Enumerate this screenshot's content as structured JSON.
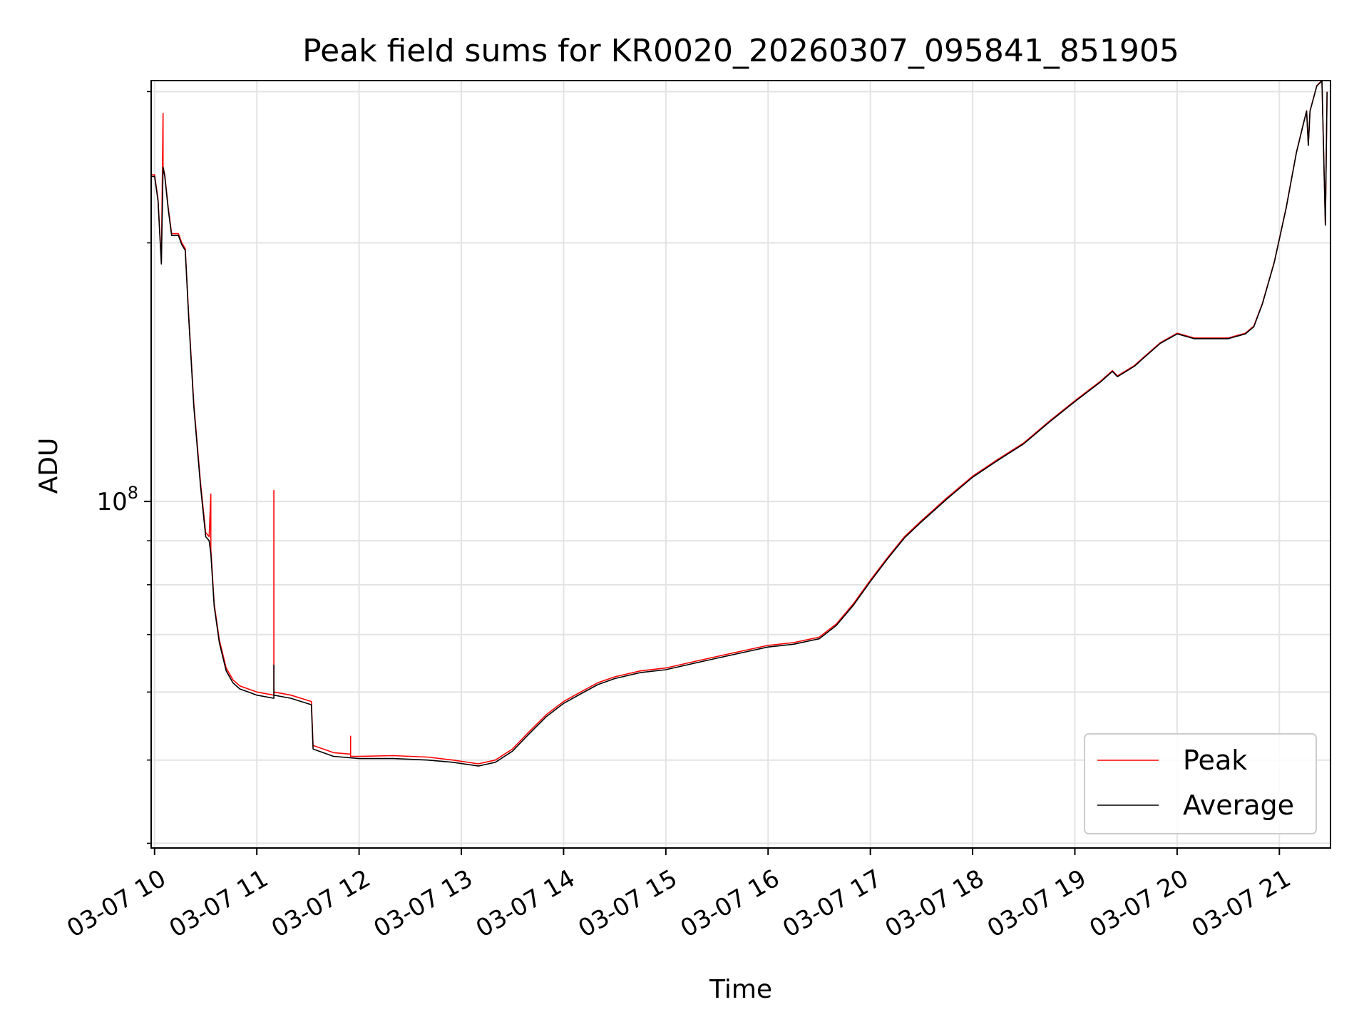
{
  "chart_data": {
    "type": "line",
    "title": "Peak field sums for KR0020_20260307_095841_851905",
    "xlabel": "Time",
    "ylabel": "ADU",
    "yscale": "log",
    "xlim": [
      "03-07 09:58",
      "03-07 21:30"
    ],
    "ylim": [
      39500000,
      309000000
    ],
    "grid": true,
    "legend_position": "lower-right",
    "x_tick_labels": [
      "03-07 10",
      "03-07 11",
      "03-07 12",
      "03-07 13",
      "03-07 14",
      "03-07 15",
      "03-07 16",
      "03-07 17",
      "03-07 18",
      "03-07 19",
      "03-07 20",
      "03-07 21"
    ],
    "x_ticks": [
      "03-07 10:00",
      "03-07 11:00",
      "03-07 12:00",
      "03-07 13:00",
      "03-07 14:00",
      "03-07 15:00",
      "03-07 16:00",
      "03-07 17:00",
      "03-07 18:00",
      "03-07 19:00",
      "03-07 20:00",
      "03-07 21:00"
    ],
    "y_tick_labels": [
      {
        "base": "10",
        "exp": "8",
        "value": 100000000
      }
    ],
    "y_minor_ticks": [
      40000000,
      50000000,
      60000000,
      70000000,
      80000000,
      90000000,
      200000000,
      300000000
    ],
    "series": [
      {
        "name": "Peak",
        "color": "#ff0000",
        "points": [
          [
            "03-07 09:58",
            240000000
          ],
          [
            "03-07 10:00",
            240000000
          ],
          [
            "03-07 10:02",
            225000000
          ],
          [
            "03-07 10:04",
            190000000
          ],
          [
            "03-07 10:05",
            283000000
          ],
          [
            "03-07 10:05",
            245000000
          ],
          [
            "03-07 10:06",
            240000000
          ],
          [
            "03-07 10:08",
            220000000
          ],
          [
            "03-07 10:10",
            205000000
          ],
          [
            "03-07 10:14",
            205000000
          ],
          [
            "03-07 10:16",
            200000000
          ],
          [
            "03-07 10:18",
            197000000
          ],
          [
            "03-07 10:20",
            165000000
          ],
          [
            "03-07 10:23",
            130000000
          ],
          [
            "03-07 10:27",
            105000000
          ],
          [
            "03-07 10:30",
            92000000
          ],
          [
            "03-07 10:32",
            91000000
          ],
          [
            "03-07 10:33",
            102000000
          ],
          [
            "03-07 10:33",
            88000000
          ],
          [
            "03-07 10:35",
            76000000
          ],
          [
            "03-07 10:38",
            69000000
          ],
          [
            "03-07 10:42",
            64000000
          ],
          [
            "03-07 10:46",
            62000000
          ],
          [
            "03-07 10:50",
            61000000
          ],
          [
            "03-07 10:55",
            60500000
          ],
          [
            "03-07 11:00",
            60000000
          ],
          [
            "03-07 11:10",
            59500000
          ],
          [
            "03-07 11:10",
            103000000
          ],
          [
            "03-07 11:10",
            60000000
          ],
          [
            "03-07 11:20",
            59500000
          ],
          [
            "03-07 11:32",
            58500000
          ],
          [
            "03-07 11:33",
            52000000
          ],
          [
            "03-07 11:45",
            51000000
          ],
          [
            "03-07 11:55",
            50800000
          ],
          [
            "03-07 11:55",
            53300000
          ],
          [
            "03-07 11:55",
            50500000
          ],
          [
            "03-07 12:00",
            50500000
          ],
          [
            "03-07 12:20",
            50600000
          ],
          [
            "03-07 12:40",
            50400000
          ],
          [
            "03-07 12:55",
            50000000
          ],
          [
            "03-07 13:10",
            49500000
          ],
          [
            "03-07 13:20",
            50000000
          ],
          [
            "03-07 13:30",
            51500000
          ],
          [
            "03-07 13:40",
            54000000
          ],
          [
            "03-07 13:50",
            56500000
          ],
          [
            "03-07 14:00",
            58500000
          ],
          [
            "03-07 14:10",
            60000000
          ],
          [
            "03-07 14:20",
            61500000
          ],
          [
            "03-07 14:30",
            62500000
          ],
          [
            "03-07 14:45",
            63500000
          ],
          [
            "03-07 15:00",
            64000000
          ],
          [
            "03-07 15:15",
            65000000
          ],
          [
            "03-07 15:30",
            66000000
          ],
          [
            "03-07 15:45",
            67000000
          ],
          [
            "03-07 16:00",
            68000000
          ],
          [
            "03-07 16:15",
            68500000
          ],
          [
            "03-07 16:30",
            69500000
          ],
          [
            "03-07 16:40",
            72000000
          ],
          [
            "03-07 16:50",
            76000000
          ],
          [
            "03-07 17:00",
            81000000
          ],
          [
            "03-07 17:10",
            86000000
          ],
          [
            "03-07 17:20",
            91000000
          ],
          [
            "03-07 17:30",
            95000000
          ],
          [
            "03-07 17:45",
            101000000
          ],
          [
            "03-07 18:00",
            107000000
          ],
          [
            "03-07 18:15",
            112000000
          ],
          [
            "03-07 18:30",
            117000000
          ],
          [
            "03-07 18:45",
            124000000
          ],
          [
            "03-07 19:00",
            131000000
          ],
          [
            "03-07 19:15",
            138000000
          ],
          [
            "03-07 19:22",
            142000000
          ],
          [
            "03-07 19:25",
            140000000
          ],
          [
            "03-07 19:35",
            144000000
          ],
          [
            "03-07 19:40",
            147000000
          ],
          [
            "03-07 19:50",
            153000000
          ],
          [
            "03-07 20:00",
            157000000
          ],
          [
            "03-07 20:10",
            155000000
          ],
          [
            "03-07 20:20",
            155000000
          ],
          [
            "03-07 20:30",
            155000000
          ],
          [
            "03-07 20:40",
            157000000
          ],
          [
            "03-07 20:45",
            160000000
          ],
          [
            "03-07 20:50",
            170000000
          ],
          [
            "03-07 20:57",
            190000000
          ],
          [
            "03-07 21:04",
            220000000
          ],
          [
            "03-07 21:10",
            255000000
          ],
          [
            "03-07 21:14",
            275000000
          ],
          [
            "03-07 21:16",
            285000000
          ],
          [
            "03-07 21:17",
            260000000
          ],
          [
            "03-07 21:18",
            285000000
          ],
          [
            "03-07 21:22",
            305000000
          ],
          [
            "03-07 21:25",
            309000000
          ],
          [
            "03-07 21:27",
            210000000
          ],
          [
            "03-07 21:28",
            300000000
          ]
        ]
      },
      {
        "name": "Average",
        "color": "#000000",
        "points": [
          [
            "03-07 09:58",
            239000000
          ],
          [
            "03-07 10:00",
            239000000
          ],
          [
            "03-07 10:02",
            224000000
          ],
          [
            "03-07 10:04",
            189000000
          ],
          [
            "03-07 10:05",
            245000000
          ],
          [
            "03-07 10:06",
            239000000
          ],
          [
            "03-07 10:08",
            219000000
          ],
          [
            "03-07 10:10",
            204000000
          ],
          [
            "03-07 10:14",
            204000000
          ],
          [
            "03-07 10:16",
            199000000
          ],
          [
            "03-07 10:18",
            196000000
          ],
          [
            "03-07 10:20",
            164000000
          ],
          [
            "03-07 10:23",
            129000000
          ],
          [
            "03-07 10:27",
            104000000
          ],
          [
            "03-07 10:30",
            91000000
          ],
          [
            "03-07 10:32",
            90000000
          ],
          [
            "03-07 10:33",
            87000000
          ],
          [
            "03-07 10:35",
            75500000
          ],
          [
            "03-07 10:38",
            68500000
          ],
          [
            "03-07 10:42",
            63500000
          ],
          [
            "03-07 10:46",
            61500000
          ],
          [
            "03-07 10:50",
            60500000
          ],
          [
            "03-07 10:55",
            60000000
          ],
          [
            "03-07 11:00",
            59500000
          ],
          [
            "03-07 11:10",
            59000000
          ],
          [
            "03-07 11:10",
            64500000
          ],
          [
            "03-07 11:10",
            59500000
          ],
          [
            "03-07 11:20",
            59000000
          ],
          [
            "03-07 11:32",
            58000000
          ],
          [
            "03-07 11:33",
            51500000
          ],
          [
            "03-07 11:45",
            50500000
          ],
          [
            "03-07 11:55",
            50300000
          ],
          [
            "03-07 12:00",
            50200000
          ],
          [
            "03-07 12:20",
            50200000
          ],
          [
            "03-07 12:40",
            50000000
          ],
          [
            "03-07 12:55",
            49700000
          ],
          [
            "03-07 13:10",
            49200000
          ],
          [
            "03-07 13:20",
            49700000
          ],
          [
            "03-07 13:30",
            51200000
          ],
          [
            "03-07 13:40",
            53700000
          ],
          [
            "03-07 13:50",
            56200000
          ],
          [
            "03-07 14:00",
            58200000
          ],
          [
            "03-07 14:10",
            59700000
          ],
          [
            "03-07 14:20",
            61200000
          ],
          [
            "03-07 14:30",
            62200000
          ],
          [
            "03-07 14:45",
            63200000
          ],
          [
            "03-07 15:00",
            63700000
          ],
          [
            "03-07 15:15",
            64700000
          ],
          [
            "03-07 15:30",
            65700000
          ],
          [
            "03-07 15:45",
            66700000
          ],
          [
            "03-07 16:00",
            67700000
          ],
          [
            "03-07 16:15",
            68200000
          ],
          [
            "03-07 16:30",
            69200000
          ],
          [
            "03-07 16:40",
            71700000
          ],
          [
            "03-07 16:50",
            75700000
          ],
          [
            "03-07 17:00",
            80700000
          ],
          [
            "03-07 17:10",
            85700000
          ],
          [
            "03-07 17:20",
            90700000
          ],
          [
            "03-07 17:30",
            94700000
          ],
          [
            "03-07 17:45",
            100700000
          ],
          [
            "03-07 18:00",
            106700000
          ],
          [
            "03-07 18:15",
            111700000
          ],
          [
            "03-07 18:30",
            116700000
          ],
          [
            "03-07 18:45",
            123700000
          ],
          [
            "03-07 19:00",
            130700000
          ],
          [
            "03-07 19:15",
            137700000
          ],
          [
            "03-07 19:22",
            141700000
          ],
          [
            "03-07 19:25",
            139700000
          ],
          [
            "03-07 19:35",
            143700000
          ],
          [
            "03-07 19:40",
            146700000
          ],
          [
            "03-07 19:50",
            152700000
          ],
          [
            "03-07 20:00",
            156700000
          ],
          [
            "03-07 20:10",
            154700000
          ],
          [
            "03-07 20:20",
            154700000
          ],
          [
            "03-07 20:30",
            154700000
          ],
          [
            "03-07 20:40",
            156700000
          ],
          [
            "03-07 20:45",
            159700000
          ],
          [
            "03-07 20:50",
            169700000
          ],
          [
            "03-07 20:57",
            189700000
          ],
          [
            "03-07 21:04",
            219700000
          ],
          [
            "03-07 21:10",
            254700000
          ],
          [
            "03-07 21:14",
            274700000
          ],
          [
            "03-07 21:16",
            284700000
          ],
          [
            "03-07 21:17",
            259700000
          ],
          [
            "03-07 21:18",
            284700000
          ],
          [
            "03-07 21:22",
            304700000
          ],
          [
            "03-07 21:25",
            308700000
          ],
          [
            "03-07 21:27",
            209700000
          ],
          [
            "03-07 21:28",
            299700000
          ]
        ]
      }
    ]
  }
}
